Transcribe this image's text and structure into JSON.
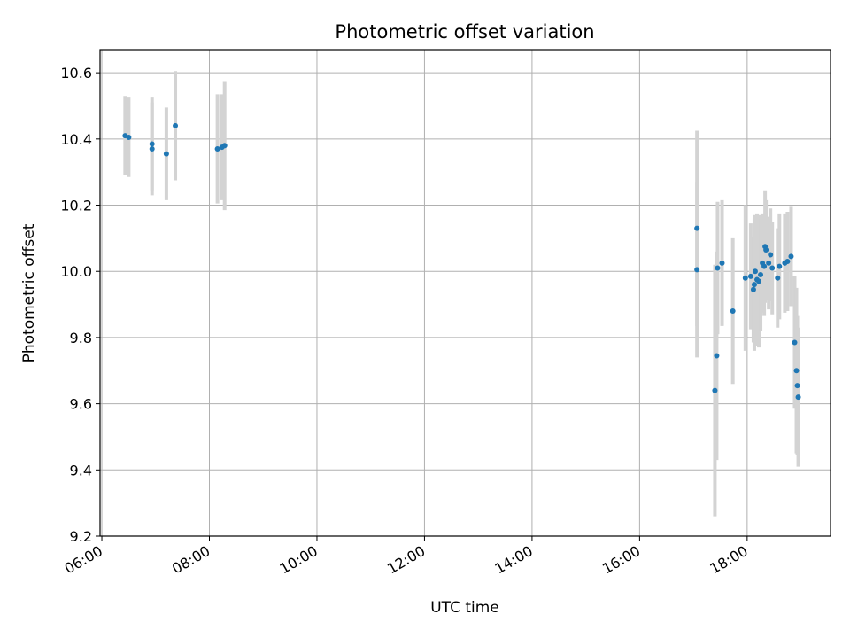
{
  "chart_data": {
    "type": "scatter",
    "title": "Photometric offset variation",
    "xlabel": "UTC time",
    "ylabel": "Photometric offset",
    "xlim": [
      "05:58",
      "19:33"
    ],
    "ylim": [
      9.2,
      10.67
    ],
    "x_ticks": [
      "06:00",
      "08:00",
      "10:00",
      "12:00",
      "14:00",
      "16:00",
      "18:00"
    ],
    "y_ticks": [
      "9.2",
      "9.4",
      "9.6",
      "9.8",
      "10.0",
      "10.2",
      "10.4",
      "10.6"
    ],
    "grid": true,
    "colors": {
      "marker": "#1f77b4",
      "errorbar": "#d3d3d3",
      "grid": "#b0b0b0"
    },
    "points": [
      {
        "x": "06:26",
        "y": 10.41,
        "err": 0.12
      },
      {
        "x": "06:30",
        "y": 10.405,
        "err": 0.12
      },
      {
        "x": "06:56",
        "y": 10.385,
        "err": 0.14
      },
      {
        "x": "06:56",
        "y": 10.37,
        "err": 0.14
      },
      {
        "x": "07:12",
        "y": 10.355,
        "err": 0.14
      },
      {
        "x": "07:22",
        "y": 10.44,
        "err": 0.165
      },
      {
        "x": "08:09",
        "y": 10.37,
        "err": 0.165
      },
      {
        "x": "08:14",
        "y": 10.375,
        "err": 0.16
      },
      {
        "x": "08:17",
        "y": 10.38,
        "err": 0.195
      },
      {
        "x": "17:04",
        "y": 10.13,
        "err": 0.295
      },
      {
        "x": "17:04",
        "y": 10.005,
        "err": 0.265
      },
      {
        "x": "17:24",
        "y": 9.64,
        "err": 0.38
      },
      {
        "x": "17:26",
        "y": 9.745,
        "err": 0.315
      },
      {
        "x": "17:27",
        "y": 10.01,
        "err": 0.2
      },
      {
        "x": "17:32",
        "y": 10.025,
        "err": 0.19
      },
      {
        "x": "17:44",
        "y": 9.88,
        "err": 0.22
      },
      {
        "x": "17:58",
        "y": 9.98,
        "err": 0.22
      },
      {
        "x": "18:04",
        "y": 9.985,
        "err": 0.16
      },
      {
        "x": "18:07",
        "y": 9.945,
        "err": 0.16
      },
      {
        "x": "18:08",
        "y": 9.96,
        "err": 0.2
      },
      {
        "x": "18:09",
        "y": 10.0,
        "err": 0.17
      },
      {
        "x": "18:11",
        "y": 9.975,
        "err": 0.2
      },
      {
        "x": "18:13",
        "y": 9.97,
        "err": 0.2
      },
      {
        "x": "18:15",
        "y": 9.99,
        "err": 0.17
      },
      {
        "x": "18:17",
        "y": 10.025,
        "err": 0.15
      },
      {
        "x": "18:19",
        "y": 10.015,
        "err": 0.15
      },
      {
        "x": "18:20",
        "y": 10.075,
        "err": 0.17
      },
      {
        "x": "18:21",
        "y": 10.065,
        "err": 0.15
      },
      {
        "x": "18:24",
        "y": 10.025,
        "err": 0.14
      },
      {
        "x": "18:26",
        "y": 10.05,
        "err": 0.14
      },
      {
        "x": "18:28",
        "y": 10.01,
        "err": 0.14
      },
      {
        "x": "18:34",
        "y": 9.98,
        "err": 0.15
      },
      {
        "x": "18:36",
        "y": 10.015,
        "err": 0.16
      },
      {
        "x": "18:42",
        "y": 10.025,
        "err": 0.15
      },
      {
        "x": "18:45",
        "y": 10.03,
        "err": 0.15
      },
      {
        "x": "18:49",
        "y": 10.045,
        "err": 0.15
      },
      {
        "x": "18:53",
        "y": 9.785,
        "err": 0.2
      },
      {
        "x": "18:55",
        "y": 9.7,
        "err": 0.25
      },
      {
        "x": "18:56",
        "y": 9.655,
        "err": 0.21
      },
      {
        "x": "18:57",
        "y": 9.62,
        "err": 0.21
      }
    ]
  }
}
